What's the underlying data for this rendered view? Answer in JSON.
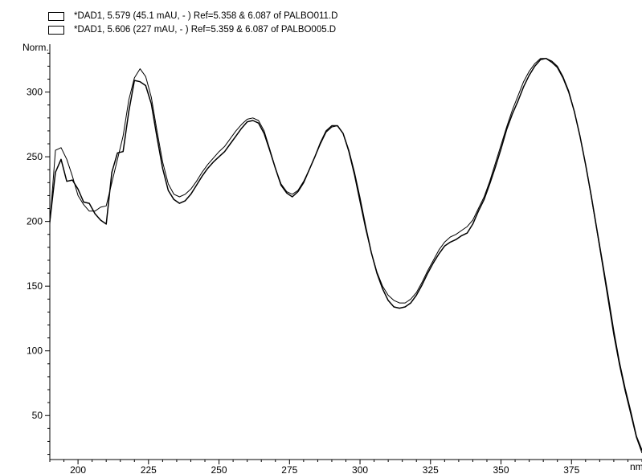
{
  "chart_data": {
    "type": "line",
    "ylabel": "Norm.",
    "xlabel": "nm",
    "xlim": [
      190,
      400
    ],
    "ylim": [
      16,
      337
    ],
    "x_ticks": [
      200,
      225,
      250,
      275,
      300,
      325,
      350,
      375
    ],
    "y_ticks": [
      50,
      100,
      150,
      200,
      250,
      300
    ],
    "x_minor_step": 5,
    "y_minor_step": 10,
    "grid": false,
    "legend_position": "top-left",
    "series": [
      {
        "name": "*DAD1, 5.579 (45.1 mAU, - ) Ref=5.358 & 6.087 of PALBO011.D",
        "color": "#000000",
        "x": [
          190,
          192,
          194,
          196,
          198,
          200,
          202,
          204,
          206,
          208,
          210,
          212,
          214,
          216,
          218,
          220,
          222,
          224,
          226,
          228,
          230,
          232,
          234,
          236,
          238,
          240,
          242,
          244,
          246,
          248,
          250,
          252,
          254,
          256,
          258,
          260,
          262,
          264,
          266,
          268,
          270,
          272,
          274,
          276,
          278,
          280,
          282,
          284,
          286,
          288,
          290,
          292,
          294,
          296,
          298,
          300,
          302,
          304,
          306,
          308,
          310,
          312,
          314,
          316,
          318,
          320,
          322,
          324,
          326,
          328,
          330,
          332,
          334,
          336,
          338,
          340,
          342,
          344,
          346,
          348,
          350,
          352,
          354,
          356,
          358,
          360,
          362,
          364,
          366,
          368,
          370,
          372,
          374,
          376,
          378,
          380,
          382,
          384,
          386,
          388,
          390,
          392,
          394,
          396,
          398,
          400
        ],
        "values": [
          200,
          238,
          248,
          231,
          232,
          225,
          215,
          214,
          206,
          201,
          198,
          238,
          253,
          254,
          285,
          309,
          308,
          305,
          291,
          265,
          241,
          224,
          217,
          214,
          216,
          221,
          228,
          235,
          241,
          246,
          250,
          254,
          260,
          266,
          272,
          277,
          278,
          276,
          268,
          255,
          241,
          228,
          222,
          219,
          223,
          230,
          240,
          250,
          261,
          270,
          274,
          274,
          268,
          255,
          238,
          218,
          196,
          176,
          160,
          148,
          139,
          134,
          133,
          134,
          137,
          143,
          151,
          160,
          168,
          175,
          181,
          184,
          186,
          189,
          191,
          198,
          208,
          217,
          229,
          242,
          256,
          271,
          283,
          293,
          304,
          313,
          320,
          325,
          326,
          323,
          319,
          311,
          300,
          285,
          266,
          244,
          220,
          194,
          168,
          142,
          115,
          91,
          71,
          53,
          34,
          23
        ]
      },
      {
        "name": "*DAD1, 5.606 (227 mAU, - ) Ref=5.359 & 6.087 of PALBO005.D",
        "color": "#000000",
        "x": [
          190,
          192,
          194,
          196,
          198,
          200,
          202,
          204,
          206,
          208,
          210,
          212,
          214,
          216,
          218,
          220,
          222,
          224,
          226,
          228,
          230,
          232,
          234,
          236,
          238,
          240,
          242,
          244,
          246,
          248,
          250,
          252,
          254,
          256,
          258,
          260,
          262,
          264,
          266,
          268,
          270,
          272,
          274,
          276,
          278,
          280,
          282,
          284,
          286,
          288,
          290,
          292,
          294,
          296,
          298,
          300,
          302,
          304,
          306,
          308,
          310,
          312,
          314,
          316,
          318,
          320,
          322,
          324,
          326,
          328,
          330,
          332,
          334,
          336,
          338,
          340,
          342,
          344,
          346,
          348,
          350,
          352,
          354,
          356,
          358,
          360,
          362,
          364,
          366,
          368,
          370,
          372,
          374,
          376,
          378,
          380,
          382,
          384,
          386,
          388,
          390,
          392,
          394,
          396,
          398,
          400
        ],
        "values": [
          198,
          255,
          257,
          248,
          235,
          220,
          213,
          208,
          208,
          211,
          212,
          230,
          248,
          266,
          294,
          311,
          318,
          312,
          296,
          270,
          246,
          229,
          221,
          219,
          221,
          225,
          231,
          238,
          244,
          249,
          254,
          258,
          264,
          270,
          275,
          279,
          280,
          278,
          270,
          256,
          241,
          229,
          223,
          221,
          224,
          231,
          240,
          250,
          260,
          269,
          273,
          274,
          268,
          254,
          236,
          215,
          194,
          176,
          161,
          150,
          143,
          139,
          137,
          137,
          140,
          145,
          153,
          162,
          170,
          178,
          184,
          188,
          190,
          193,
          196,
          201,
          210,
          219,
          231,
          245,
          259,
          273,
          286,
          297,
          308,
          316,
          322,
          326,
          326,
          324,
          320,
          312,
          301,
          285,
          266,
          244,
          219,
          193,
          166,
          139,
          112,
          89,
          69,
          51,
          33,
          21
        ]
      }
    ]
  }
}
